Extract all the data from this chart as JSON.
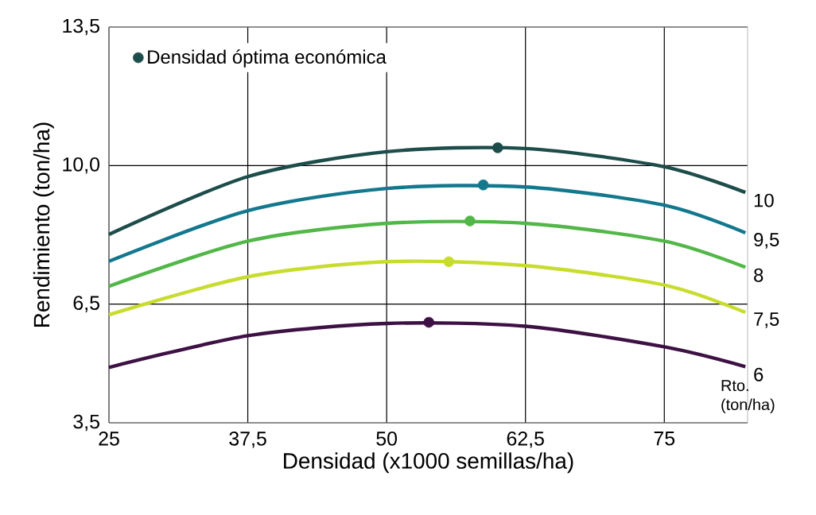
{
  "chart_data": {
    "type": "line",
    "xlabel": "Densidad (x1000 semillas/ha)",
    "ylabel": "Rendimiento (ton/ha)",
    "legend_title": "Rto. (ton/ha)",
    "xlim": [
      25,
      82.5
    ],
    "ylim": [
      3.5,
      13.5
    ],
    "xticks": [
      25,
      {
        "value": 37.5,
        "label": "37,5"
      },
      50,
      {
        "value": 62.5,
        "label": "62,5"
      },
      75
    ],
    "yticks": [
      {
        "value": 3.5,
        "label": "3,5"
      },
      {
        "value": 6.5,
        "label": "6,5"
      },
      {
        "value": 10,
        "label": "10,0"
      },
      {
        "value": 13.5,
        "label": "13,5"
      }
    ],
    "grid": true,
    "legend": "top left",
    "series": [
      {
        "name": "10",
        "color": "#1d4d4a",
        "marker": "none",
        "x": [
          25,
          37.5,
          50,
          62.5,
          75,
          82.3
        ],
        "values": [
          8.26,
          9.72,
          10.35,
          10.43,
          9.97,
          9.32
        ]
      },
      {
        "name": "9,5",
        "color": "#13788e",
        "marker": "none",
        "x": [
          25,
          37.5,
          50,
          62.5,
          75,
          82.3
        ],
        "values": [
          7.58,
          8.86,
          9.42,
          9.46,
          9.0,
          8.3
        ]
      },
      {
        "name": "8",
        "color": "#52b748",
        "marker": "none",
        "x": [
          25,
          37.5,
          50,
          62.5,
          75,
          82.3
        ],
        "values": [
          6.95,
          8.09,
          8.54,
          8.54,
          8.09,
          7.43
        ]
      },
      {
        "name": "7,5",
        "color": "#c8dc2e",
        "marker": "none",
        "x": [
          25,
          37.5,
          50,
          62.5,
          75,
          82.3
        ],
        "values": [
          6.23,
          7.19,
          7.57,
          7.47,
          6.98,
          6.29
        ]
      },
      {
        "name": "6",
        "color": "#3d1144",
        "marker": "none",
        "x": [
          25,
          37.5,
          50,
          62.5,
          75,
          82.3
        ],
        "values": [
          4.9,
          5.7,
          6.01,
          5.94,
          5.42,
          4.92
        ]
      },
      {
        "name": "Densidad óptima económica",
        "type": "scatter",
        "marker": "circle",
        "x": [
          60,
          58.7,
          57.5,
          55.6,
          53.8
        ],
        "values": [
          10.45,
          9.51,
          8.6,
          7.57,
          6.04
        ],
        "colors": [
          "#1d4d4a",
          "#13788e",
          "#52b748",
          "#c8dc2e",
          "#3d1144"
        ]
      }
    ]
  }
}
